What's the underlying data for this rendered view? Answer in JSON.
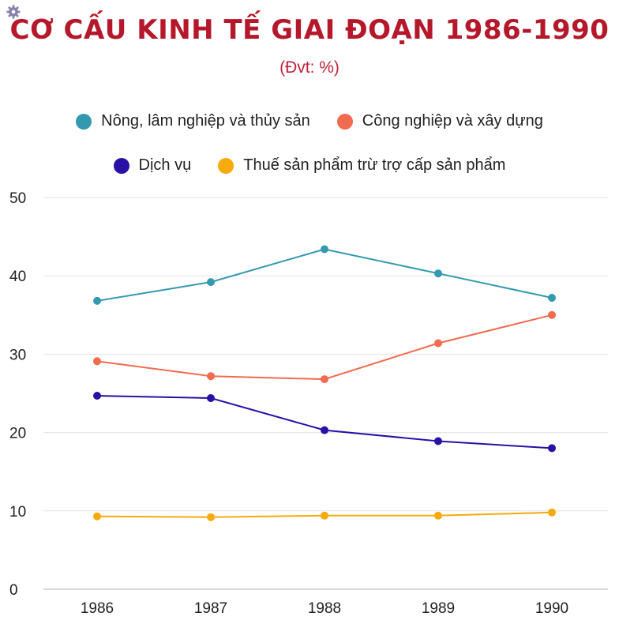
{
  "header": {
    "title": "CƠ CẤU KINH TẾ GIAI ĐOẠN 1986-1990",
    "subtitle": "(Đvt: %)",
    "title_color": "#b5182a",
    "subtitle_color": "#c0233a",
    "icon": "gear-icon"
  },
  "chart_data": {
    "type": "line",
    "title": "CƠ CẤU KINH TẾ GIAI ĐOẠN 1986-1990",
    "subtitle": "(Đvt: %)",
    "xlabel": "",
    "ylabel": "",
    "categories": [
      "1986",
      "1987",
      "1988",
      "1989",
      "1990"
    ],
    "ylim": [
      0,
      50
    ],
    "yticks": [
      "0",
      "10",
      "20",
      "30",
      "40",
      "50"
    ],
    "grid": true,
    "legend_position": "top",
    "series": [
      {
        "name": "Nông, lâm nghiệp và thủy sản",
        "color": "#3399b0",
        "values": [
          36.8,
          39.2,
          43.4,
          40.3,
          37.2
        ]
      },
      {
        "name": "Công nghiệp và xây dựng",
        "color": "#f26b4e",
        "values": [
          29.1,
          27.2,
          26.8,
          31.4,
          35.0
        ]
      },
      {
        "name": "Dịch vụ",
        "color": "#2a10a6",
        "values": [
          24.7,
          24.4,
          20.3,
          18.9,
          18.0
        ]
      },
      {
        "name": "Thuế sản phẩm trừ trợ cấp sản phẩm",
        "color": "#f7aa0c",
        "values": [
          9.3,
          9.2,
          9.4,
          9.4,
          9.8
        ]
      }
    ]
  }
}
